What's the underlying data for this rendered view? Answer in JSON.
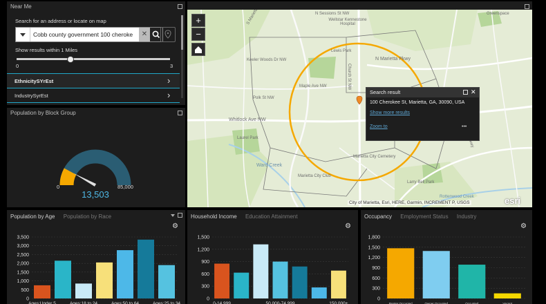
{
  "near_me": {
    "title": "Near Me",
    "search_label": "Search for an address or locate on map",
    "search_value": "Cobb county government 100 cheroke",
    "radius_label": "Show results within 1 Miles",
    "slider_min": "0",
    "slider_max": "3",
    "slider_value": 1,
    "layers": [
      "EthnicitySYrEst",
      "IndustrySyrEst"
    ]
  },
  "gauge": {
    "title": "Population by Block Group",
    "min_label": "0",
    "max_label": "85,000",
    "value_label": "13,503",
    "value": 13503,
    "max": 85000
  },
  "map": {
    "attribution": "City of Marietta, Esri, HERE, Garmin, INCREMENT P, USGS",
    "logo": "esri",
    "zoom_in": "+",
    "zoom_out": "−",
    "place_labels": [
      "N Sessions St NW",
      "S Marietta Pkwy",
      "Wellstar Kennestone Hospital",
      "Greenspace",
      "Lewis Park",
      "Keeler Woods Dr NW",
      "Church St NW",
      "N Marietta Pkwy",
      "Maple Ave NW",
      "Polk St NW",
      "Whitlock Ave NW",
      "Laurel Park",
      "Ward Creek",
      "Marietta City Club",
      "Marietta City Cemetery",
      "Larry Bell Park",
      "Rottenwood Creek",
      "Cobb Pkwy"
    ],
    "popup": {
      "title": "Search result",
      "address": "100 Cherokee St, Marietta, GA, 30090, USA",
      "more_link": "Show more results",
      "zoom_link": "Zoom to",
      "more_icon": "•••"
    }
  },
  "age_panel": {
    "tabs": [
      "Population by Age",
      "Population by Race"
    ],
    "chart_data": {
      "type": "bar",
      "categories": [
        "Ages:Under 5",
        "Ages:5 to 14",
        "Ages:18 to 24",
        "Ages:25 to 34",
        "Ages:50 to 64",
        "Ages:35 to 49",
        "Ages:25 to 34"
      ],
      "values": [
        750,
        2150,
        850,
        2050,
        2750,
        3350,
        1900
      ],
      "colors": [
        "#d9541e",
        "#2ab5c8",
        "#c9eaf7",
        "#f7e07a",
        "#4db8e8",
        "#157a9a",
        "#55c2e0"
      ],
      "ylim": [
        0,
        3500
      ],
      "yticks": [
        "3,500",
        "3,000",
        "2,500",
        "2,000",
        "1,500",
        "1,000",
        "500",
        "0"
      ],
      "xticks": [
        "Ages:Under 5",
        "Ages:18 to 24",
        "Ages:50 to 64",
        "Ages:25 to 34"
      ]
    }
  },
  "income_panel": {
    "tabs": [
      "Household Income",
      "Education Attainment"
    ],
    "chart_data": {
      "type": "bar",
      "categories": [
        "0-14,999",
        "15,000-24,999",
        "25,000-49,999",
        "50,000-74,999",
        "75,000-99,999",
        "100,000-149,999",
        "150,000+"
      ],
      "values": [
        850,
        630,
        1320,
        900,
        780,
        270,
        680
      ],
      "colors": [
        "#d9541e",
        "#2ab5c8",
        "#c9eaf7",
        "#55c2e0",
        "#157a9a",
        "#4db8e8",
        "#f7e07a"
      ],
      "ylim": [
        0,
        1500
      ],
      "yticks": [
        "1,500",
        "1,200",
        "900",
        "600",
        "300",
        "0"
      ],
      "xticks": [
        "0-14,999",
        "50,000-74,999",
        "150,000+"
      ]
    }
  },
  "occupancy_panel": {
    "tabs": [
      "Occupancy",
      "Employment Status",
      "Industry"
    ],
    "chart_data": {
      "type": "bar",
      "categories": [
        "Renter Occupied",
        "Owner Occupied",
        "Occupied",
        "Vacant"
      ],
      "values": [
        1470,
        1390,
        990,
        150
      ],
      "colors": [
        "#f5a800",
        "#7fcdf0",
        "#20b5a8",
        "#f5d800"
      ],
      "ylim": [
        0,
        1800
      ],
      "yticks": [
        "1,800",
        "1,500",
        "1,200",
        "900",
        "600",
        "300",
        "0"
      ],
      "xticks": [
        "Renter Occupied",
        "Owner Occupied",
        "Occupied",
        "Vacant"
      ]
    }
  }
}
